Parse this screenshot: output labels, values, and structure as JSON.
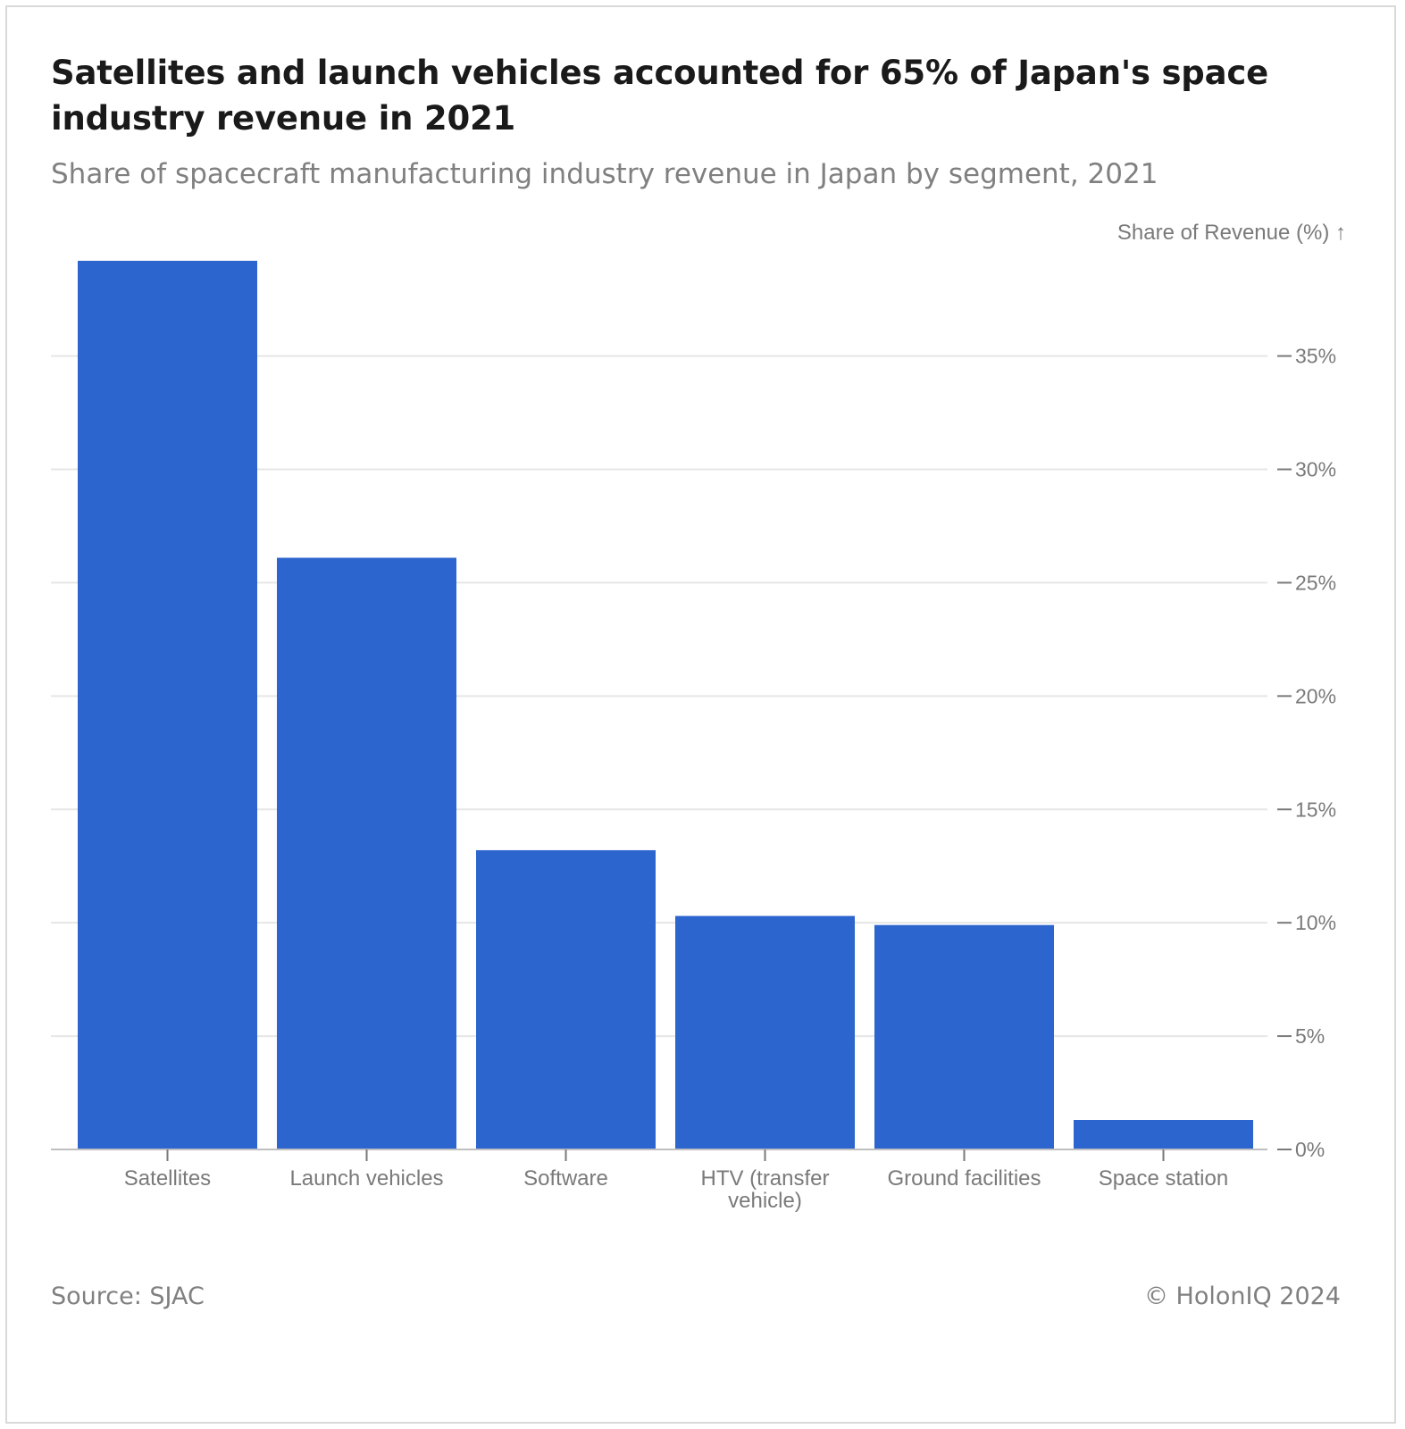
{
  "title": "Satellites and launch vehicles accounted for 65% of Japan's space industry revenue in 2021",
  "subtitle": "Share of spacecraft manufacturing industry revenue in Japan by segment, 2021",
  "source": "Source: SJAC",
  "copyright": "© HolonIQ 2024",
  "colors": {
    "bar": "#2b65cd",
    "grid": "#e6e6e6",
    "axis_text": "#7a7a7a"
  },
  "chart_data": {
    "type": "bar",
    "title": "Satellites and launch vehicles accounted for 65% of Japan's space industry revenue in 2021",
    "subtitle": "Share of spacecraft manufacturing industry revenue in Japan by segment, 2021",
    "ylabel": "Share of Revenue (%) ↑",
    "categories": [
      "Satellites",
      "Launch vehicles",
      "Software",
      "HTV (transfer vehicle)",
      "Ground facilities",
      "Space station"
    ],
    "category_lines": [
      [
        "Satellites"
      ],
      [
        "Launch vehicles"
      ],
      [
        "Software"
      ],
      [
        "HTV (transfer",
        "vehicle)"
      ],
      [
        "Ground facilities"
      ],
      [
        "Space station"
      ]
    ],
    "values": [
      39.2,
      26.1,
      13.2,
      10.3,
      9.9,
      1.3
    ],
    "ylim": [
      0,
      39.2
    ],
    "yticks": [
      0,
      5,
      10,
      15,
      20,
      25,
      30,
      35
    ],
    "ytick_labels": [
      "0%",
      "5%",
      "10%",
      "15%",
      "20%",
      "25%",
      "30%",
      "35%"
    ],
    "y_axis_position": "right",
    "grid": true,
    "legend": "none"
  }
}
